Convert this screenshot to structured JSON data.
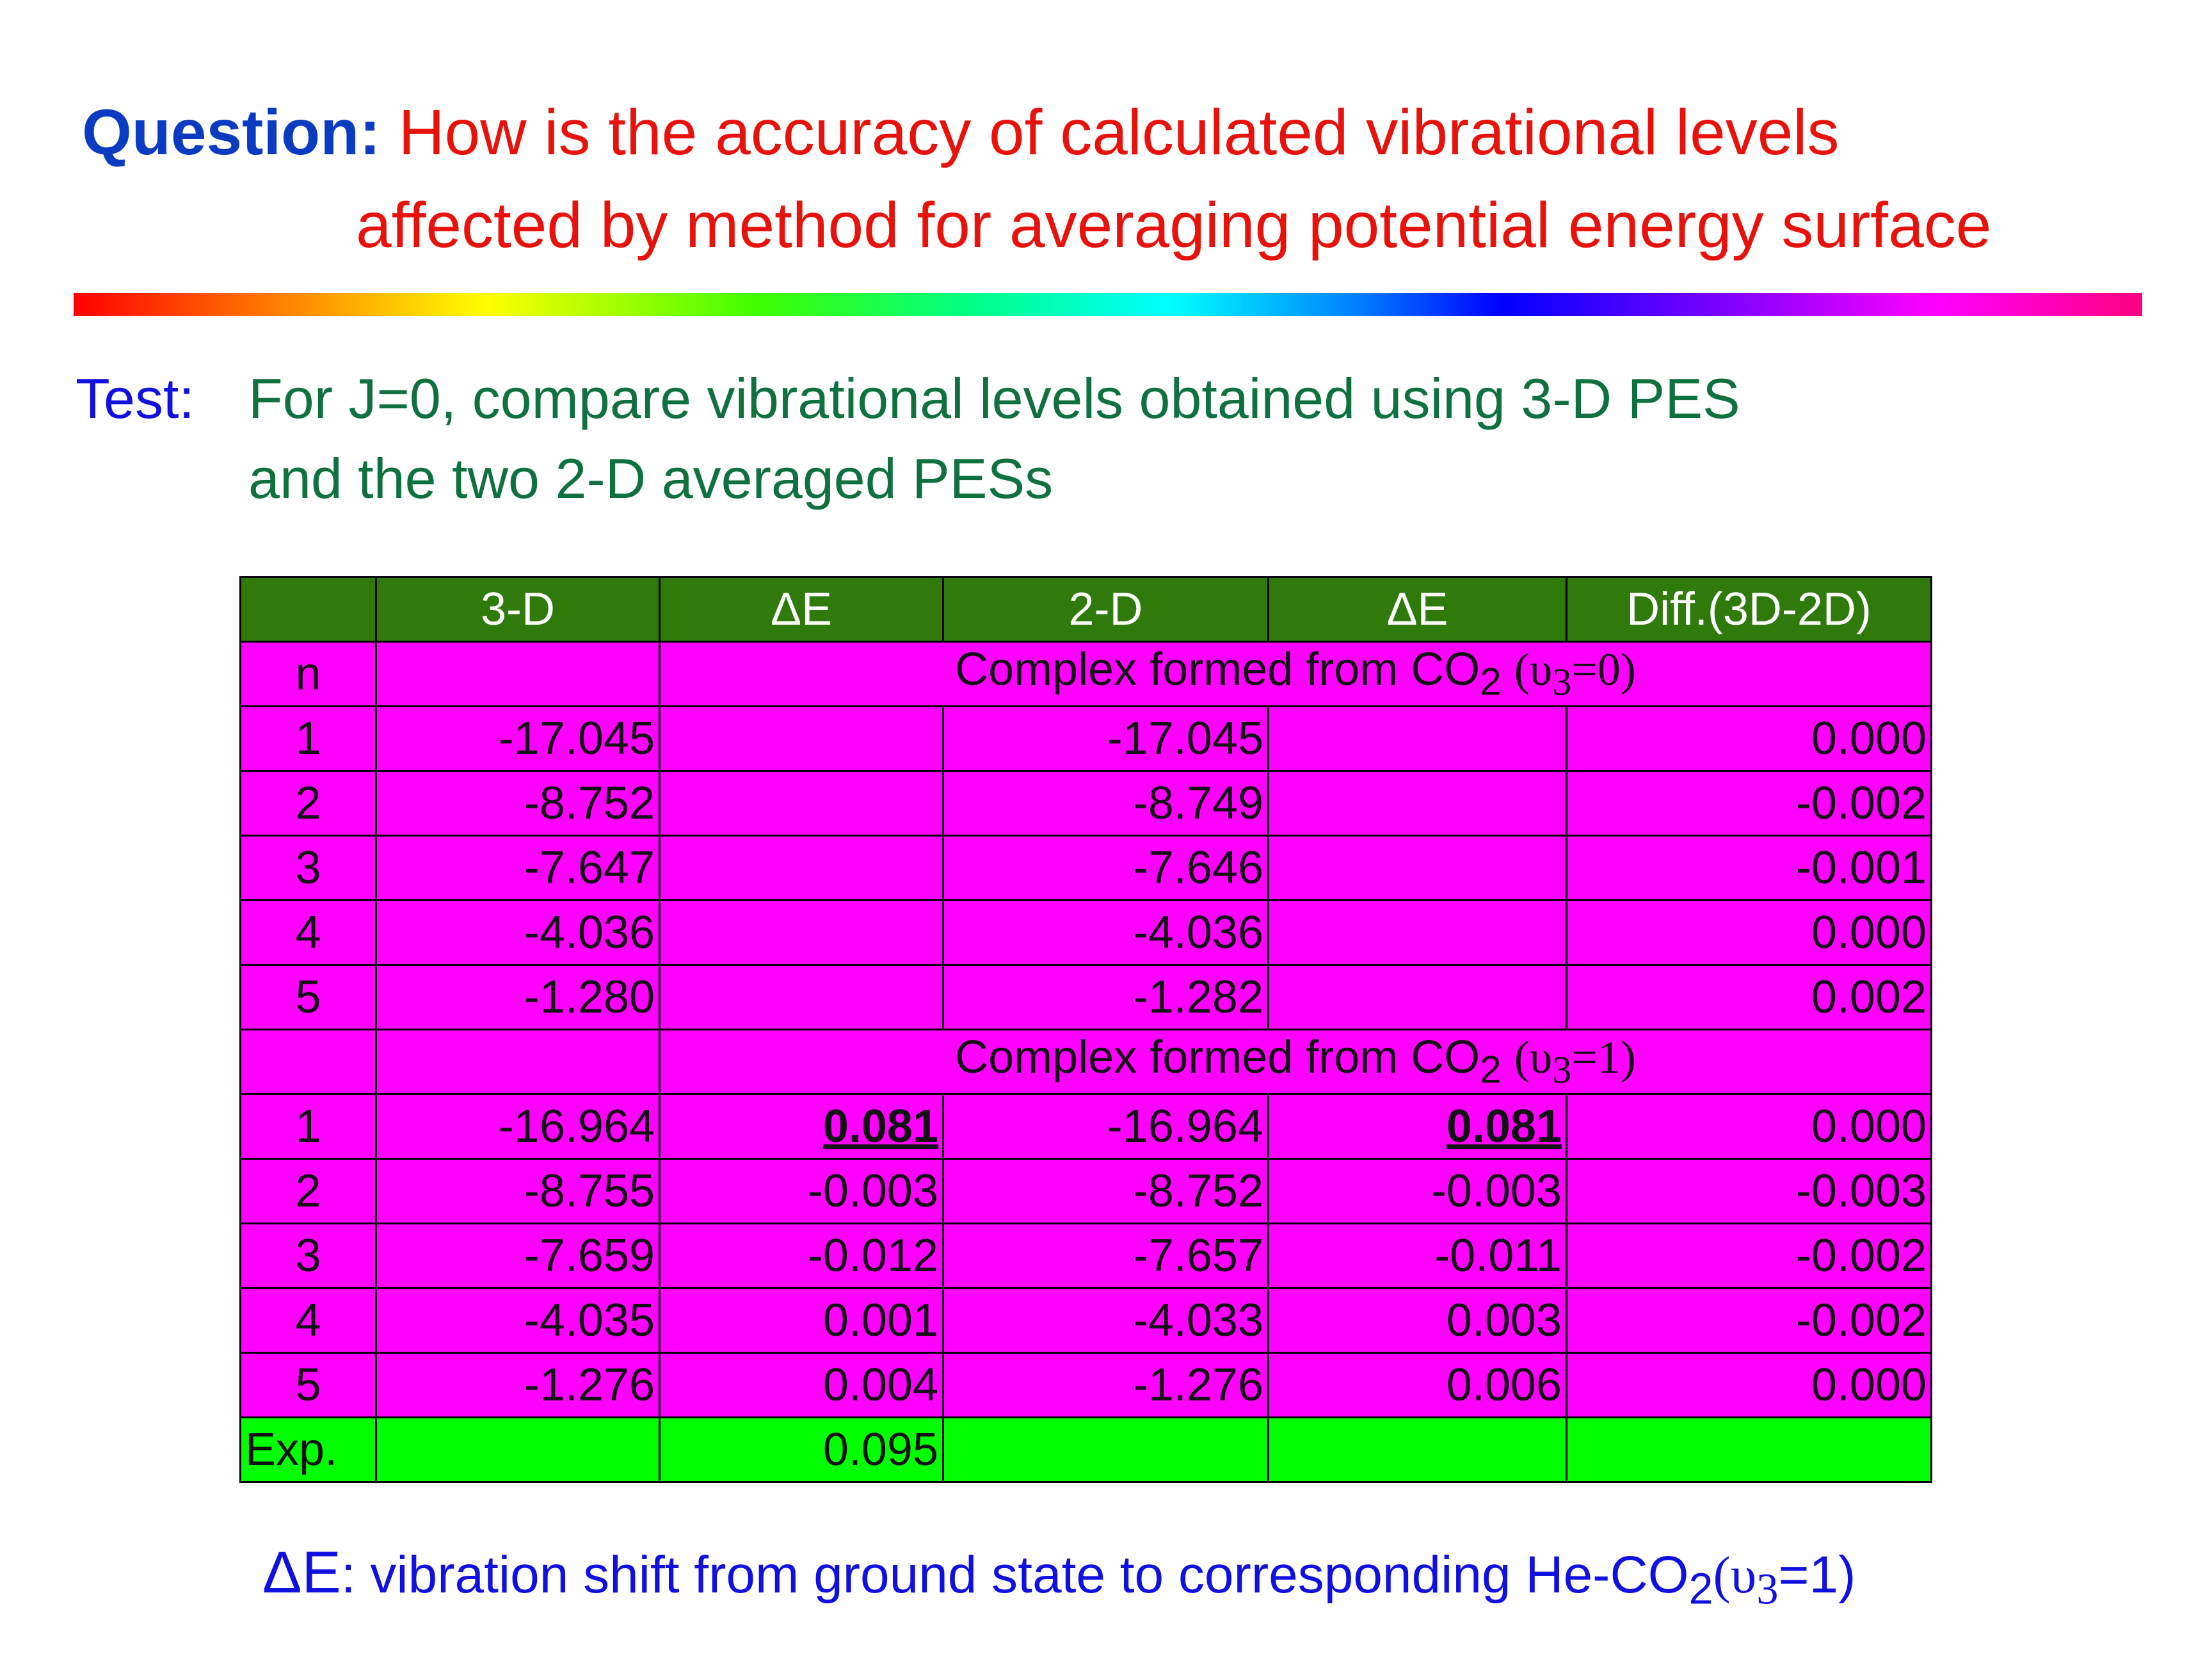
{
  "title": {
    "label": "Question:",
    "line1": "How is the accuracy of calculated vibrational levels",
    "line2": "affected by method for averaging potential energy surface"
  },
  "test": {
    "label": "Test:",
    "line1": "For J=0, compare vibrational levels obtained using 3-D PES",
    "line2": "and the two 2-D averaged PESs"
  },
  "table": {
    "headers": [
      "",
      "3-D",
      "ΔE",
      "2-D",
      "ΔE",
      "Diff.(3D-2D)"
    ],
    "n_label": "n",
    "section1": {
      "text": "Complex formed from CO",
      "sub": "2",
      "paren": "(υ",
      "psub": "3",
      "tail": "=0)"
    },
    "rows1": [
      {
        "n": "1",
        "d3": "-17.045",
        "d2": "-17.045",
        "diff": "0.000"
      },
      {
        "n": "2",
        "d3": "-8.752",
        "d2": "-8.749",
        "diff": "-0.002"
      },
      {
        "n": "3",
        "d3": "-7.647",
        "d2": "-7.646",
        "diff": "-0.001"
      },
      {
        "n": "4",
        "d3": "-4.036",
        "d2": "-4.036",
        "diff": "0.000"
      },
      {
        "n": "5",
        "d3": "-1.280",
        "d2": "-1.282",
        "diff": "0.002"
      }
    ],
    "section2": {
      "text": "Complex formed from CO",
      "sub": "2",
      "paren": "(υ",
      "psub": "3",
      "tail": "=1)"
    },
    "rows2": [
      {
        "n": "1",
        "d3": "-16.964",
        "de3": "0.081",
        "d2": "-16.964",
        "de2": "0.081",
        "diff": "0.000"
      },
      {
        "n": "2",
        "d3": "-8.755",
        "de3": "-0.003",
        "d2": "-8.752",
        "de2": "-0.003",
        "diff": "-0.003"
      },
      {
        "n": "3",
        "d3": "-7.659",
        "de3": "-0.012",
        "d2": "-7.657",
        "de2": "-0.011",
        "diff": "-0.002"
      },
      {
        "n": "4",
        "d3": "-4.035",
        "de3": "0.001",
        "d2": "-4.033",
        "de2": "0.003",
        "diff": "-0.002"
      },
      {
        "n": "5",
        "d3": "-1.276",
        "de3": "0.004",
        "d2": "-1.276",
        "de2": "0.006",
        "diff": "0.000"
      }
    ],
    "exp": {
      "label": "Exp.",
      "de3": "0.095"
    }
  },
  "note": {
    "symbol": "ΔE",
    "text": ": vibration shift from ground state to corresponding He-CO",
    "sub": "2",
    "paren": "(υ",
    "psub": "3",
    "tail": "=1)"
  }
}
